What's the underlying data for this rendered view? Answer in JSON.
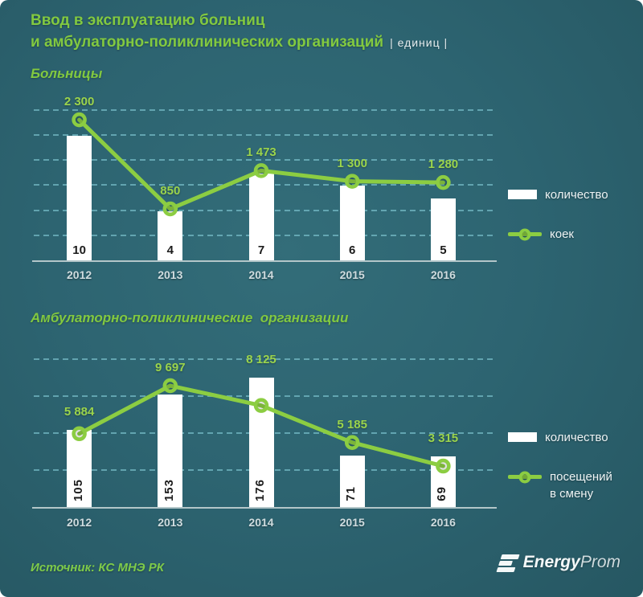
{
  "header": {
    "title_line1": "Ввод в эксплуатацию больниц",
    "title_line2": "и амбулаторно-поликлинических организаций",
    "units_suffix": "| единиц |"
  },
  "footer": {
    "source": "Источник: КС МНЭ РК",
    "logo_icon": "energyprom-stripes-icon",
    "logo_text_bold": "Energy",
    "logo_text_light": "Prom"
  },
  "colors": {
    "background_center": "#336d79",
    "background_edge": "#265762",
    "accent_green": "#8ccd42",
    "label_green": "#9bd44c",
    "heading_green": "#82c940",
    "bar_fill": "#ffffff",
    "gridline": "#85ced9",
    "axis": "#b3c6c9",
    "text_light": "#eef4f5",
    "bar_label_dark": "#1b1b1b"
  },
  "chart_data": [
    {
      "type": "bar+line",
      "title": "Больницы",
      "categories": [
        "2012",
        "2013",
        "2014",
        "2015",
        "2016"
      ],
      "series": [
        {
          "name": "количество",
          "kind": "bar",
          "values": [
            10,
            4,
            7,
            6,
            5
          ],
          "labels": [
            "10",
            "4",
            "7",
            "6",
            "5"
          ]
        },
        {
          "name": "коек",
          "kind": "line",
          "values": [
            2300,
            850,
            1473,
            1300,
            1280
          ],
          "labels": [
            "2 300",
            "850",
            "1 473",
            "1 300",
            "1 280"
          ]
        }
      ],
      "bar_ylim": [
        0,
        12.5
      ],
      "line_ylim": [
        0,
        2550
      ],
      "gridline_values_bar_axis": [
        2,
        4,
        6,
        8,
        10,
        12
      ],
      "grid_style": "dashed horizontal",
      "legend_position": "right",
      "bar_labels_vertical": false,
      "legend": [
        {
          "label": "количество",
          "swatch": "bar"
        },
        {
          "label": "коек",
          "swatch": "line"
        }
      ]
    },
    {
      "type": "bar+line",
      "title": "Амбулаторно-поликлинические  организации",
      "categories": [
        "2012",
        "2013",
        "2014",
        "2015",
        "2016"
      ],
      "series": [
        {
          "name": "количество",
          "kind": "bar",
          "values": [
            105,
            153,
            176,
            71,
            69
          ],
          "labels": [
            "105",
            "153",
            "176",
            "71",
            "69"
          ]
        },
        {
          "name": "посещений в смену",
          "kind": "line",
          "values": [
            5884,
            9697,
            8125,
            5185,
            3315
          ],
          "labels": [
            "5 884",
            "9 697",
            "8 125",
            "5 185",
            "3 315"
          ]
        }
      ],
      "bar_ylim": [
        0,
        217
      ],
      "line_ylim": [
        0,
        12760
      ],
      "gridline_values_bar_axis": [
        50,
        100,
        150,
        200
      ],
      "grid_style": "dashed horizontal",
      "legend_position": "right",
      "bar_labels_vertical": true,
      "legend": [
        {
          "label": "количество",
          "swatch": "bar"
        },
        {
          "label": "посещений\nв смену",
          "swatch": "line"
        }
      ]
    }
  ]
}
